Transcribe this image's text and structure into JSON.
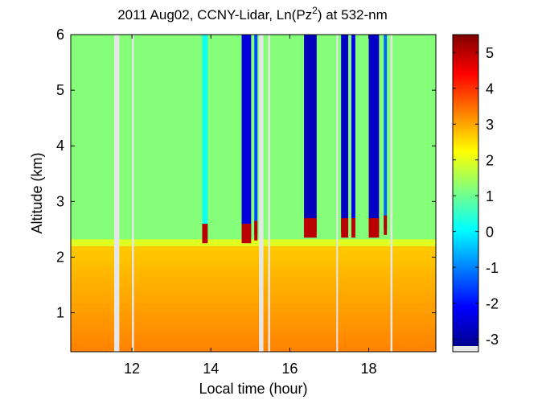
{
  "chart_data": {
    "type": "heatmap",
    "title": {
      "prefix": "2011 Aug02, CCNY-Lidar, Ln(Pz",
      "superscript": "2",
      "suffix": ") at 532-nm"
    },
    "xlabel": "Local time (hour)",
    "ylabel": "Altitude (km)",
    "xlim": [
      10.45,
      19.7
    ],
    "ylim": [
      0.3,
      6.0
    ],
    "xticks": [
      12,
      14,
      16,
      18
    ],
    "yticks": [
      1,
      2,
      3,
      4,
      5,
      6
    ],
    "colorbar": {
      "range": [
        -3.2,
        5.5
      ],
      "ticks": [
        -3,
        -2,
        -1,
        0,
        1,
        2,
        3,
        4,
        5
      ],
      "colormap": "jet",
      "missing_color": "#e6e6e6"
    },
    "layers": {
      "boundary_layer_top_km": 2.2,
      "boundary_layer_value": 2.7,
      "surface_value": 3.3,
      "free_troposphere_value": 1.2
    },
    "data_gaps_hours": [
      [
        11.55,
        11.68
      ],
      [
        12.0,
        12.05
      ],
      [
        15.22,
        15.33
      ],
      [
        15.45,
        15.5
      ],
      [
        17.18,
        17.22
      ],
      [
        18.55,
        18.6
      ]
    ],
    "cloud_columns": [
      {
        "start": 13.78,
        "end": 13.92,
        "base_km": 2.35,
        "value": 0.2
      },
      {
        "start": 14.78,
        "end": 15.02,
        "base_km": 2.35,
        "value": -2.4
      },
      {
        "start": 15.1,
        "end": 15.18,
        "base_km": 2.4,
        "value": -1.5
      },
      {
        "start": 16.36,
        "end": 16.68,
        "base_km": 2.45,
        "value": -2.7
      },
      {
        "start": 17.3,
        "end": 17.48,
        "base_km": 2.45,
        "value": -2.6
      },
      {
        "start": 17.56,
        "end": 17.66,
        "base_km": 2.45,
        "value": -2.3
      },
      {
        "start": 18.0,
        "end": 18.26,
        "base_km": 2.45,
        "value": -2.6
      },
      {
        "start": 18.38,
        "end": 18.46,
        "base_km": 2.5,
        "value": -1.2
      }
    ],
    "cloud_base_value": 5.0
  }
}
